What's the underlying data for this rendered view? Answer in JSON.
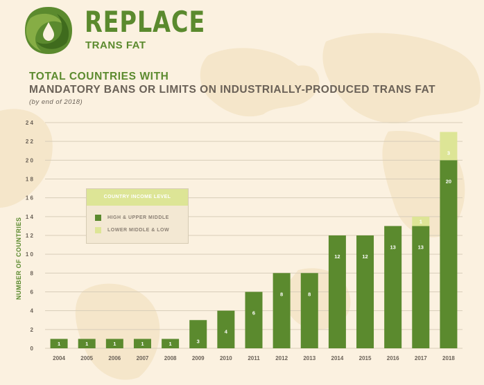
{
  "brand": {
    "name": "REPLACE",
    "subtitle": "TRANS FAT",
    "logo_icon": "oil-drop-logo-icon"
  },
  "colors": {
    "background": "#fbf1e0",
    "map": "#f5e6ca",
    "brand_green": "#5b8a2e",
    "bar_dark": "#5b8a2e",
    "bar_light": "#dde596",
    "title_gray": "#6a6157"
  },
  "chart_data": {
    "type": "bar",
    "stacked": true,
    "title": "TOTAL COUNTRIES WITH",
    "title_line2": "MANDATORY BANS OR LIMITS ON INDUSTRIALLY-PRODUCED TRANS FAT",
    "subtitle": "(by end of 2018)",
    "ylabel": "NUMBER OF COUNTRIES",
    "xlabel": "",
    "ylim": [
      0,
      24
    ],
    "yticks": [
      0,
      2,
      4,
      6,
      8,
      10,
      12,
      14,
      16,
      18,
      20,
      22,
      24
    ],
    "ytick_labels": [
      "0",
      "2",
      "4",
      "6",
      "8",
      "1 0",
      "1 2",
      "1 4",
      "1 6",
      "1 8",
      "2 0",
      "2 2",
      "2 4"
    ],
    "grid": true,
    "categories": [
      "2004",
      "2005",
      "2006",
      "2007",
      "2008",
      "2009",
      "2010",
      "2011",
      "2012",
      "2013",
      "2014",
      "2015",
      "2016",
      "2017",
      "2018"
    ],
    "series": [
      {
        "name": "HIGH & UPPER MIDDLE",
        "color": "#5b8a2e",
        "values": [
          1,
          1,
          1,
          1,
          1,
          3,
          4,
          6,
          8,
          8,
          12,
          12,
          13,
          13,
          20
        ]
      },
      {
        "name": "LOWER MIDDLE & LOW",
        "color": "#dde596",
        "values": [
          0,
          0,
          0,
          0,
          0,
          0,
          0,
          0,
          0,
          0,
          0,
          0,
          0,
          1,
          3
        ]
      }
    ],
    "legend": {
      "title": "COUNTRY INCOME LEVEL",
      "placement": "left-center"
    }
  }
}
